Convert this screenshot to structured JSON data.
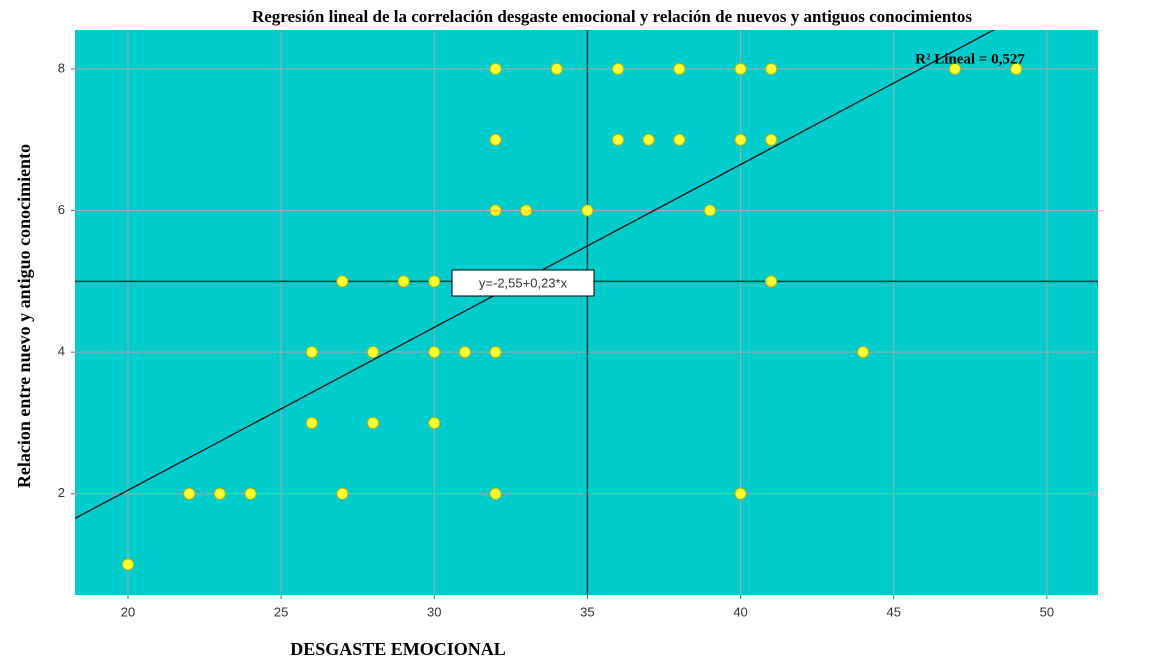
{
  "chart_data": {
    "type": "scatter",
    "title": "Regresión lineal de la correlación desgaste emocional y relación de nuevos y antiguos conocimientos",
    "x_label": "DESGASTE EMOCIONAL",
    "y_label": "Relacion entre nuevo y antiguo conocimiento",
    "background": "#00cccc",
    "color": "#ffff33",
    "grid": true,
    "x": [
      20,
      22,
      23,
      24,
      27,
      32,
      40,
      26,
      28,
      30,
      26,
      28,
      30,
      31,
      32,
      44,
      27,
      29,
      30,
      41,
      32,
      33,
      35,
      39,
      32,
      36,
      37,
      38,
      40,
      41,
      32,
      34,
      36,
      38,
      40,
      41,
      47,
      49
    ],
    "y": [
      1,
      2,
      2,
      2,
      2,
      2,
      2,
      3,
      3,
      3,
      4,
      4,
      4,
      4,
      4,
      4,
      5,
      5,
      5,
      5,
      6,
      6,
      6,
      6,
      7,
      7,
      7,
      7,
      7,
      7,
      8,
      8,
      8,
      8,
      8,
      8,
      8,
      8
    ],
    "xlim": [
      18.27,
      51.67
    ],
    "ylim": [
      0.57,
      8.55
    ],
    "xticks": [
      20,
      25,
      30,
      35,
      40,
      45,
      50
    ],
    "yticks": [
      2,
      4,
      6,
      8
    ],
    "reference_lines": {
      "x": 35,
      "y": 5
    },
    "fit": {
      "intercept": -2.55,
      "slope": 0.23,
      "label": "y=-2,55+0,23*x",
      "r2_label": "R² Lineal = 0,527"
    }
  }
}
